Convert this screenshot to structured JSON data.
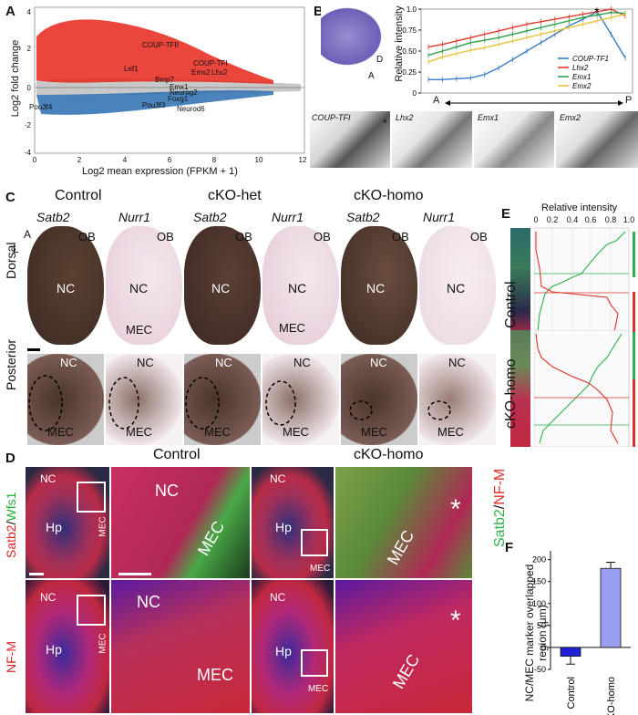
{
  "panelA": {
    "letter": "A",
    "ylabel": "Log2 fold change",
    "xlabel": "Log2 mean expression (FPKM + 1)",
    "genes_up": [
      "COUP-TFII",
      "Lef1",
      "Emx2",
      "COUP-TFI",
      "Lhx2",
      "Emx1",
      "Bmp7"
    ],
    "genes_down": [
      "Neurog2",
      "Pou3f4",
      "Foxg1",
      "Pou3f3",
      "Neurod6"
    ],
    "xticks": [
      "0",
      "2",
      "4",
      "6",
      "8",
      "10",
      "12"
    ],
    "yticks": [
      "4",
      "2",
      "0",
      "-2",
      "-4"
    ],
    "colors": {
      "up": "#e8261a",
      "down": "#2c6fb0",
      "neutral": "#bbbbbb"
    }
  },
  "panelB": {
    "letter": "B",
    "axis_label": "Relative intensity",
    "d_label": "D",
    "a_label": "A",
    "ap_left": "A",
    "ap_right": "P",
    "star": "*",
    "images": [
      "COUP-TFI",
      "Lhx2",
      "Emx1",
      "Emx2"
    ],
    "chart_data": {
      "type": "line",
      "title": "",
      "xlabel": "",
      "ylabel": "Relative intensity",
      "ylim": [
        0,
        1.0
      ],
      "yticks": [
        "0",
        "0.25",
        "0.50",
        "0.75",
        "1.0"
      ],
      "x": [
        1,
        2,
        3,
        4,
        5,
        6,
        7,
        8,
        9,
        10,
        11,
        12,
        13,
        14,
        15
      ],
      "series": [
        {
          "name": "COUP-TF1",
          "color": "#3a7dc8",
          "values": [
            0.16,
            0.16,
            0.17,
            0.18,
            0.22,
            0.3,
            0.4,
            0.5,
            0.6,
            0.7,
            0.8,
            0.88,
            0.97,
            0.7,
            0.42
          ]
        },
        {
          "name": "Lhx2",
          "color": "#e23b2e",
          "values": [
            0.55,
            0.58,
            0.62,
            0.66,
            0.7,
            0.74,
            0.78,
            0.82,
            0.85,
            0.88,
            0.91,
            0.94,
            0.97,
            1.0,
            0.92
          ]
        },
        {
          "name": "Emx1",
          "color": "#2fa04a",
          "values": [
            0.45,
            0.5,
            0.55,
            0.6,
            0.63,
            0.66,
            0.7,
            0.74,
            0.78,
            0.82,
            0.86,
            0.9,
            0.93,
            0.96,
            0.95
          ]
        },
        {
          "name": "Emx2",
          "color": "#e9c33a",
          "values": [
            0.37,
            0.43,
            0.47,
            0.51,
            0.54,
            0.58,
            0.62,
            0.66,
            0.7,
            0.74,
            0.78,
            0.82,
            0.86,
            0.9,
            0.94
          ]
        }
      ]
    }
  },
  "panelC": {
    "letter": "C",
    "groups": [
      "Control",
      "cKO-het",
      "cKO-homo"
    ],
    "genes": [
      "Satb2",
      "Nurr1",
      "Satb2",
      "Nurr1",
      "Satb2",
      "Nurr1"
    ],
    "rows": [
      "Dorsal",
      "Posterior"
    ],
    "ob": "OB",
    "nc": "NC",
    "mec": "MEC",
    "compass_a": "A",
    "compass_l": "L"
  },
  "panelD": {
    "letter": "D",
    "groups": [
      "Control",
      "cKO-homo"
    ],
    "row1_label_a": "Satb2",
    "row1_label_b": "Wfs1",
    "row2_label": "NF-M",
    "nc": "NC",
    "mec": "MEC",
    "hp": "Hp",
    "star": "*"
  },
  "panelE": {
    "letter": "E",
    "title": "Relative intensity",
    "xticks": [
      "0",
      "0.2",
      "0.4",
      "0.6",
      "0.8",
      "1.0"
    ],
    "rows": [
      "Control",
      "cKO-homo"
    ],
    "label_green": "Satb2",
    "label_red": "NF-M",
    "separator": "/",
    "colors": {
      "green": "#2cb04a",
      "red": "#e0302a"
    }
  },
  "panelF": {
    "letter": "F",
    "ylabel": "NC/MEC marker overlapped region (µm)",
    "chart_data": {
      "type": "bar",
      "categories": [
        "Control",
        "cKO-homo"
      ],
      "values": [
        -20,
        180
      ],
      "errors": [
        18,
        14
      ],
      "colors": [
        "#1f20d8",
        "#9aa0ee"
      ],
      "ylim": [
        -50,
        220
      ],
      "yticks": [
        "200",
        "150",
        "100",
        "50",
        "0",
        "-50"
      ],
      "ylabel": "NC/MEC marker overlapped region (µm)"
    }
  }
}
